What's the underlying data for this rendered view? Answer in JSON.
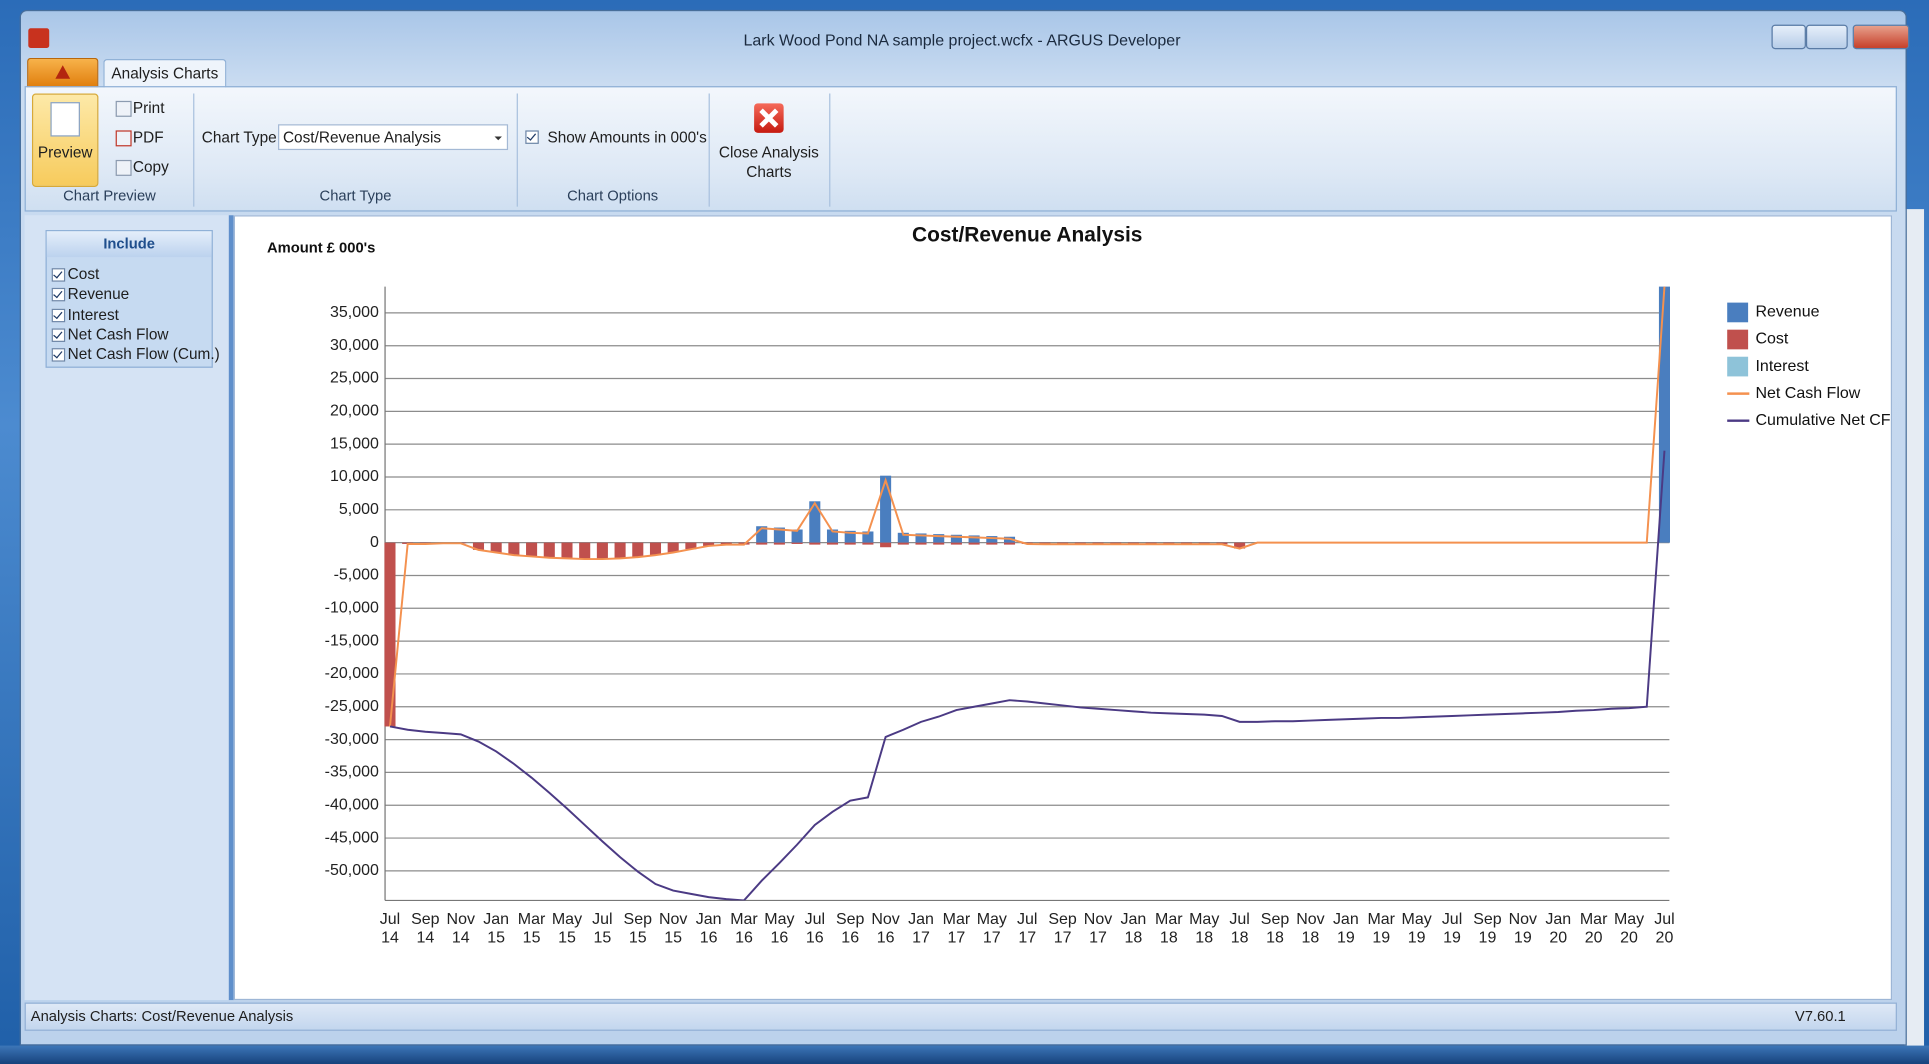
{
  "window": {
    "title": "Lark Wood Pond NA sample project.wcfx - ARGUS Developer"
  },
  "ribbon": {
    "tab": "Analysis Charts",
    "preview": "Preview",
    "print": "Print",
    "pdf": "PDF",
    "copy": "Copy",
    "chart_preview_group": "Chart Preview",
    "chart_type_label": "Chart Type",
    "chart_type_value": "Cost/Revenue Analysis",
    "chart_type_group": "Chart Type",
    "show_amounts": "Show Amounts in 000's",
    "chart_options_group": "Chart Options",
    "close": "Close Analysis Charts"
  },
  "include_panel": {
    "title": "Include",
    "items": [
      "Cost",
      "Revenue",
      "Interest",
      "Net Cash Flow",
      "Net Cash Flow (Cum.)"
    ]
  },
  "status_bar": {
    "text": "Analysis Charts: Cost/Revenue Analysis",
    "version": "V7.60.1"
  },
  "chart_data": {
    "type": "bar",
    "title": "Cost/Revenue Analysis",
    "y_label": "Amount £ 000's",
    "categories": [
      "Jul 14",
      null,
      "Sep 14",
      null,
      "Nov 14",
      null,
      "Jan 15",
      null,
      "Mar 15",
      null,
      "May 15",
      null,
      "Jul 15",
      null,
      "Sep 15",
      null,
      "Nov 15",
      null,
      "Jan 16",
      null,
      "Mar 16",
      null,
      "May 16",
      null,
      "Jul 16",
      null,
      "Sep 16",
      null,
      "Nov 16",
      null,
      "Jan 17",
      null,
      "Mar 17",
      null,
      "May 17",
      null,
      "Jul 17",
      null,
      "Sep 17",
      null,
      "Nov 17",
      null,
      "Jan 18",
      null,
      "Mar 18",
      null,
      "May 18",
      null,
      "Jul 18",
      null,
      "Sep 18",
      null,
      "Nov 18",
      null,
      "Jan 19",
      null,
      "Mar 19",
      null,
      "May 19",
      null,
      "Jul 19",
      null,
      "Sep 19",
      null,
      "Nov 19",
      null,
      "Jan 20",
      null,
      "Mar 20",
      null,
      "May 20",
      null,
      "Jul 20"
    ],
    "series": [
      {
        "name": "Revenue",
        "color": "#4a7ebf",
        "values": [
          0,
          0,
          0,
          0,
          0,
          0,
          0,
          0,
          0,
          0,
          0,
          0,
          0,
          0,
          0,
          0,
          0,
          0,
          0,
          0,
          0,
          2500,
          2300,
          2000,
          6300,
          2000,
          1800,
          1700,
          10200,
          1500,
          1400,
          1300,
          1200,
          1100,
          1000,
          900,
          0,
          0,
          0,
          0,
          0,
          0,
          0,
          0,
          0,
          0,
          0,
          0,
          0,
          0,
          0,
          0,
          0,
          0,
          0,
          0,
          0,
          0,
          0,
          0,
          0,
          0,
          0,
          0,
          0,
          0,
          0,
          0,
          0,
          0,
          0,
          0,
          39000
        ]
      },
      {
        "name": "Cost",
        "color": "#c0504d",
        "values": [
          -28000,
          -200,
          -200,
          -100,
          -100,
          -1100,
          -1500,
          -1900,
          -2100,
          -2300,
          -2400,
          -2500,
          -2500,
          -2400,
          -2200,
          -1900,
          -1500,
          -1000,
          -500,
          -300,
          -300,
          -300,
          -300,
          -200,
          -300,
          -300,
          -300,
          -300,
          -700,
          -300,
          -300,
          -300,
          -300,
          -300,
          -300,
          -300,
          -200,
          -250,
          -250,
          -250,
          -250,
          -250,
          -250,
          -250,
          -250,
          -250,
          -250,
          -250,
          -900,
          0,
          0,
          0,
          0,
          0,
          0,
          0,
          0,
          0,
          0,
          0,
          0,
          0,
          0,
          0,
          0,
          0,
          0,
          0,
          0,
          0,
          0,
          0,
          0
        ]
      },
      {
        "name": "Interest",
        "color": "#8ec3d9",
        "values": [
          0,
          0,
          0,
          0,
          0,
          0,
          0,
          0,
          0,
          0,
          0,
          0,
          0,
          0,
          0,
          0,
          0,
          0,
          0,
          0,
          0,
          0,
          0,
          0,
          0,
          0,
          0,
          0,
          0,
          0,
          0,
          0,
          0,
          0,
          0,
          0,
          0,
          0,
          0,
          0,
          0,
          0,
          0,
          0,
          0,
          0,
          0,
          0,
          0,
          0,
          0,
          0,
          0,
          0,
          0,
          0,
          0,
          0,
          0,
          0,
          0,
          0,
          0,
          0,
          0,
          0,
          0,
          0,
          0,
          0,
          0,
          0,
          0
        ]
      },
      {
        "name": "Net Cash Flow",
        "type": "line",
        "color": "#f4914f",
        "values": [
          -28000,
          -200,
          -200,
          -100,
          -100,
          -1100,
          -1500,
          -1900,
          -2100,
          -2300,
          -2400,
          -2500,
          -2500,
          -2400,
          -2200,
          -1900,
          -1500,
          -1000,
          -500,
          -300,
          -300,
          2200,
          2000,
          1800,
          6000,
          1700,
          1500,
          1400,
          9500,
          1200,
          1100,
          1000,
          900,
          800,
          700,
          600,
          -200,
          -250,
          -250,
          -250,
          -250,
          -250,
          -250,
          -250,
          -250,
          -250,
          -250,
          -250,
          -900,
          0,
          0,
          0,
          0,
          0,
          0,
          0,
          0,
          0,
          0,
          0,
          0,
          0,
          0,
          0,
          0,
          0,
          0,
          0,
          0,
          0,
          0,
          0,
          39000
        ]
      },
      {
        "name": "Cumulative Net CF",
        "type": "line",
        "color": "#4b3a84",
        "values": [
          -28000,
          -28500,
          -28800,
          -29000,
          -29200,
          -30300,
          -31800,
          -33700,
          -35800,
          -38100,
          -40500,
          -43000,
          -45500,
          -47900,
          -50100,
          -52000,
          -53000,
          -53500,
          -54000,
          -54300,
          -54500,
          -51500,
          -48800,
          -46000,
          -43000,
          -41000,
          -39300,
          -38800,
          -29600,
          -28500,
          -27300,
          -26500,
          -25500,
          -25000,
          -24500,
          -24000,
          -24200,
          -24500,
          -24800,
          -25100,
          -25300,
          -25500,
          -25700,
          -25900,
          -26000,
          -26100,
          -26200,
          -26400,
          -27300,
          -27300,
          -27200,
          -27200,
          -27100,
          -27000,
          -26900,
          -26800,
          -26700,
          -26700,
          -26600,
          -26500,
          -26400,
          -26300,
          -26200,
          -26100,
          -26000,
          -25900,
          -25800,
          -25600,
          -25500,
          -25300,
          -25200,
          -25000,
          14000
        ]
      }
    ],
    "ylim": [
      -54500,
      39000
    ],
    "yticks": [
      {
        "value": -50000,
        "label": "-50,000"
      },
      {
        "value": -45000,
        "label": "-45,000"
      },
      {
        "value": -40000,
        "label": "-40,000"
      },
      {
        "value": -35000,
        "label": "-35,000"
      },
      {
        "value": -30000,
        "label": "-30,000"
      },
      {
        "value": -25000,
        "label": "-25,000"
      },
      {
        "value": -20000,
        "label": "-20,000"
      },
      {
        "value": -15000,
        "label": "-15,000"
      },
      {
        "value": -10000,
        "label": "-10,000"
      },
      {
        "value": -5000,
        "label": "-5,000"
      },
      0,
      {
        "value": 5000,
        "label": "5,000"
      },
      {
        "value": 10000,
        "label": "10,000"
      },
      {
        "value": 15000,
        "label": "15,000"
      },
      {
        "value": 20000,
        "label": "20,000"
      },
      {
        "value": 25000,
        "label": "25,000"
      },
      {
        "value": 30000,
        "label": "30,000"
      },
      {
        "value": 35000,
        "label": "35,000"
      }
    ],
    "grid": true,
    "legend": "right"
  }
}
